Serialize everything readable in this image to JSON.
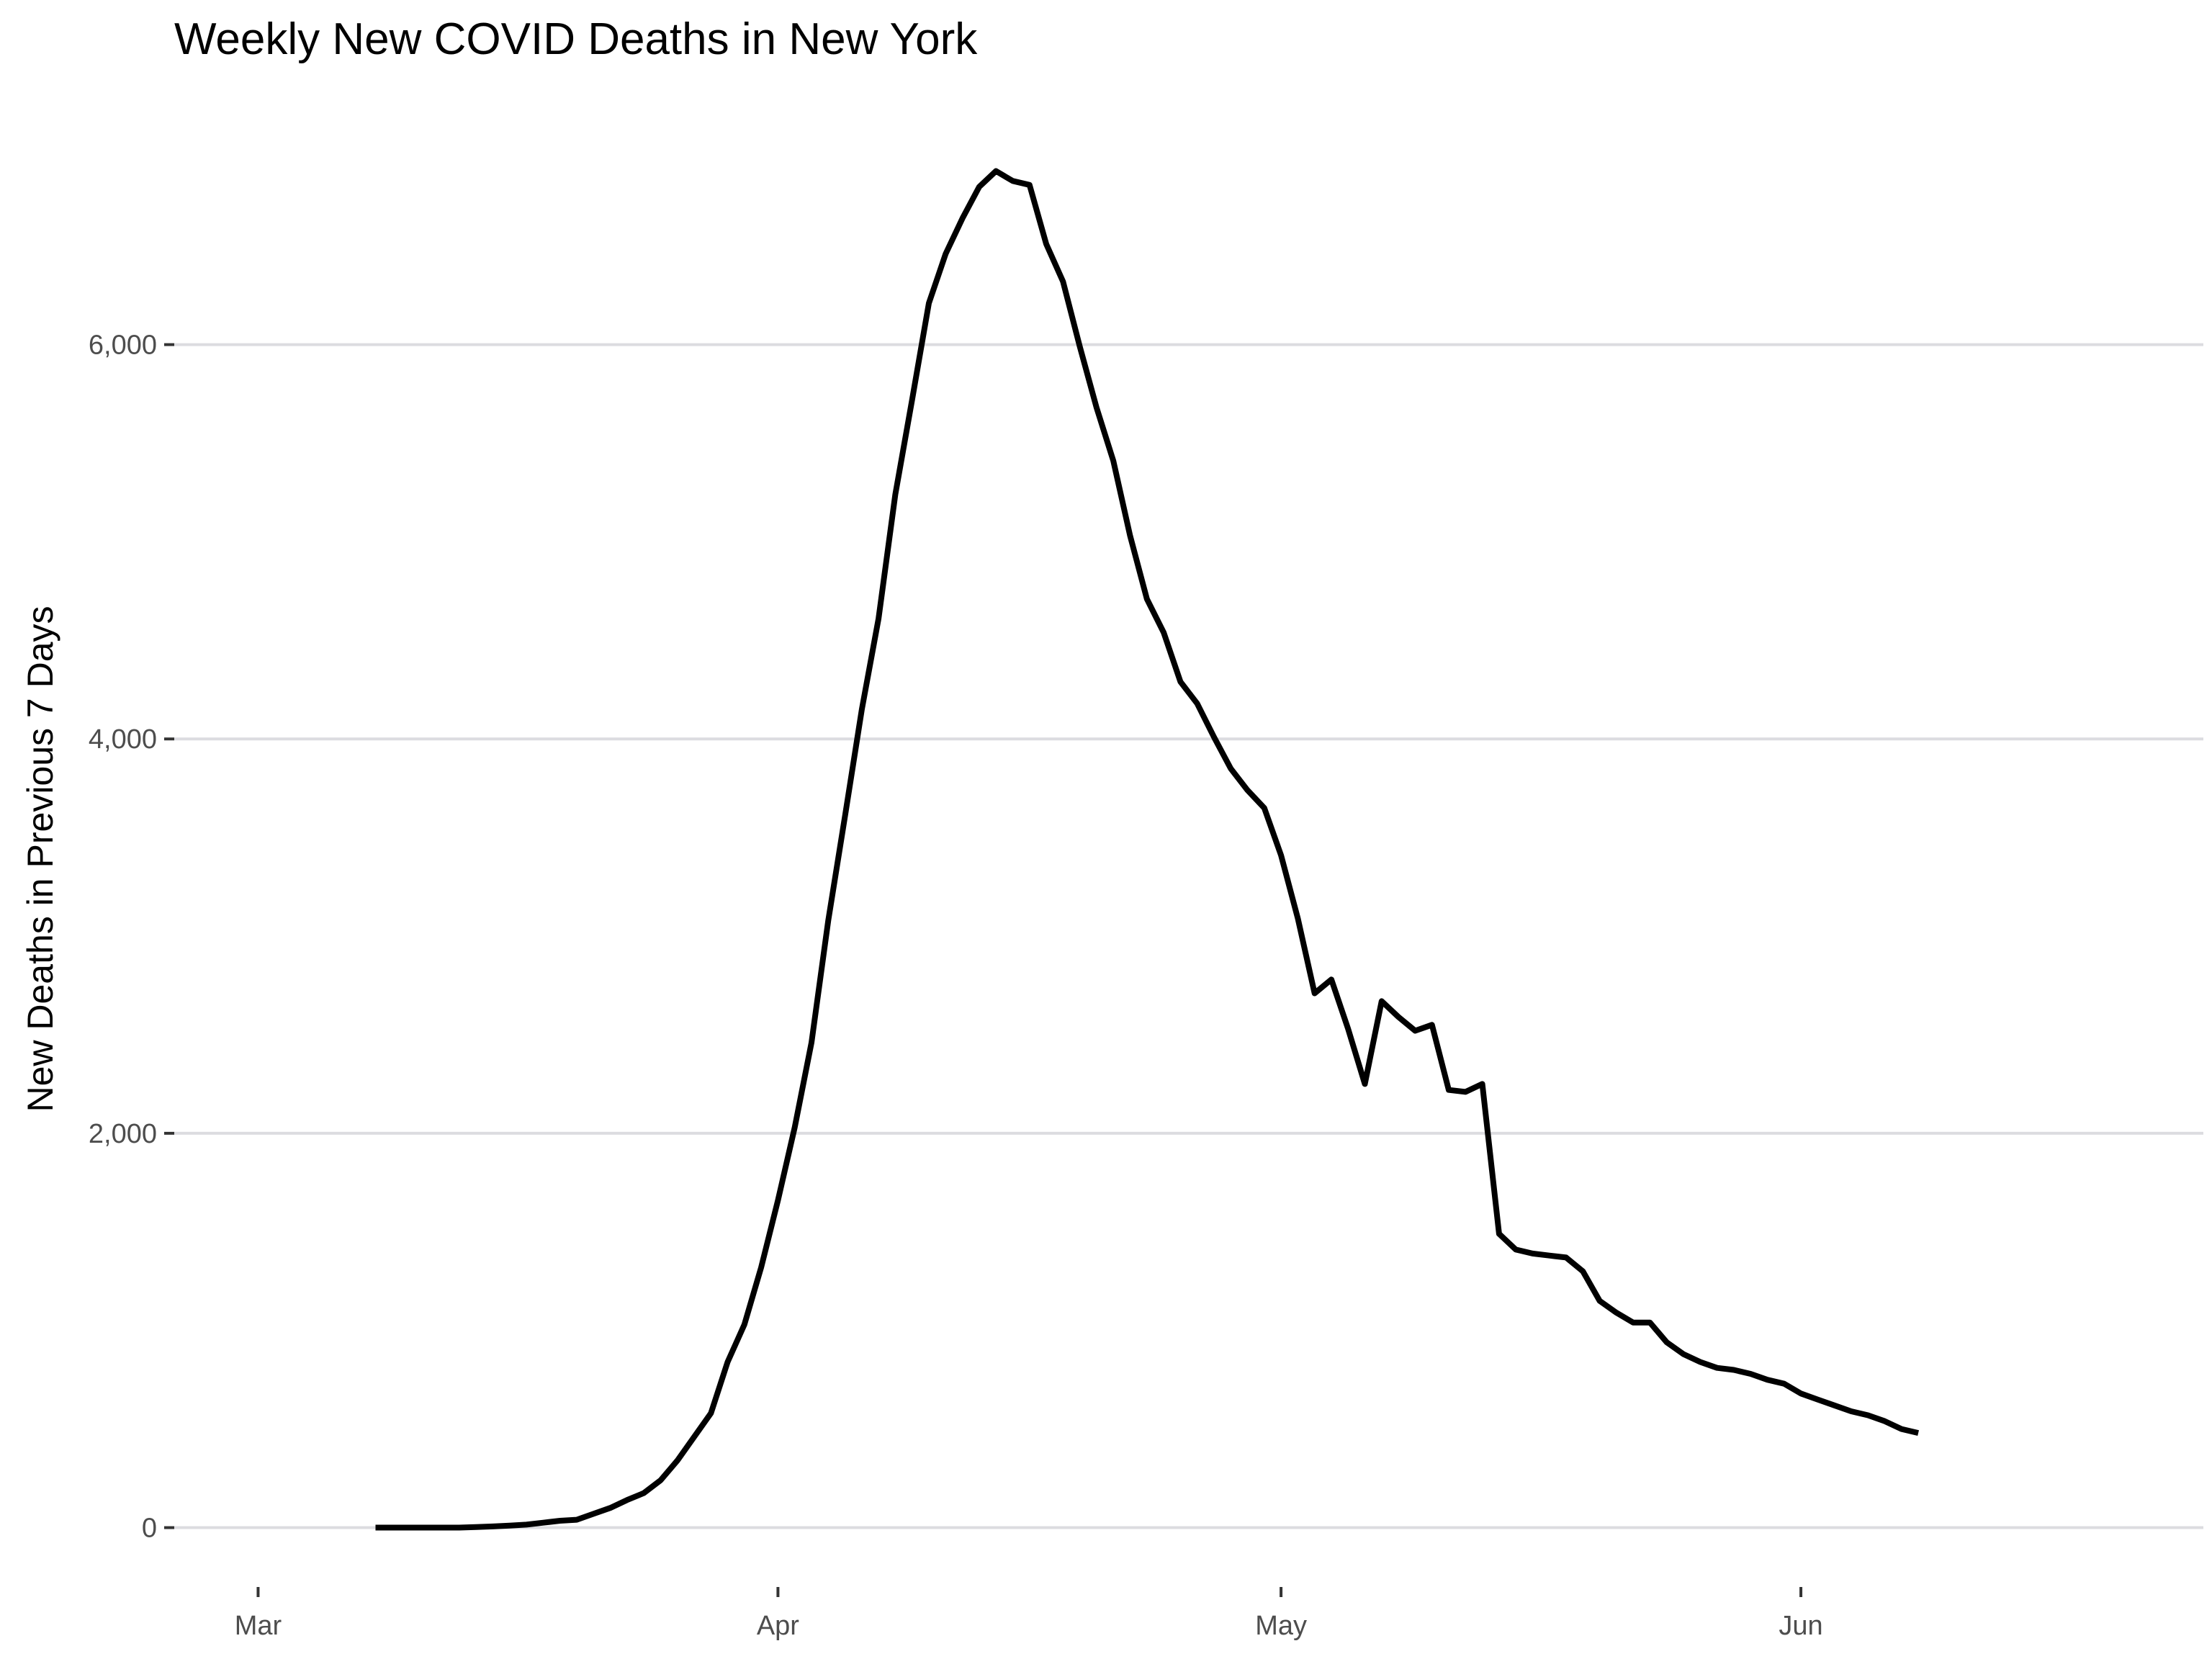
{
  "chart_data": {
    "type": "line",
    "title": "Weekly New COVID Deaths in New York",
    "xlabel": "",
    "ylabel": "New Deaths in Previous 7 Days",
    "x_axis": {
      "type": "date",
      "range": [
        "2020-02-25",
        "2020-06-25"
      ],
      "ticks": [
        {
          "date": "2020-03-01",
          "label": "Mar"
        },
        {
          "date": "2020-04-01",
          "label": "Apr"
        },
        {
          "date": "2020-05-01",
          "label": "May"
        },
        {
          "date": "2020-06-01",
          "label": "Jun"
        }
      ]
    },
    "y_axis": {
      "range": [
        -250,
        7200
      ],
      "ticks": [
        {
          "value": 0,
          "label": "0"
        },
        {
          "value": 2000,
          "label": "2,000"
        },
        {
          "value": 4000,
          "label": "4,000"
        },
        {
          "value": 6000,
          "label": "6,000"
        }
      ]
    },
    "grid": "horizontal major gridlines",
    "legend": "none",
    "line_color": "#000000",
    "series": [
      {
        "x": [
          "2020-03-08",
          "2020-03-09",
          "2020-03-10",
          "2020-03-11",
          "2020-03-12",
          "2020-03-13",
          "2020-03-14",
          "2020-03-15",
          "2020-03-16",
          "2020-03-17",
          "2020-03-18",
          "2020-03-19",
          "2020-03-20",
          "2020-03-21",
          "2020-03-22",
          "2020-03-23",
          "2020-03-24",
          "2020-03-25",
          "2020-03-26",
          "2020-03-27",
          "2020-03-28",
          "2020-03-29",
          "2020-03-30",
          "2020-03-31",
          "2020-04-01",
          "2020-04-02",
          "2020-04-03",
          "2020-04-04",
          "2020-04-05",
          "2020-04-06",
          "2020-04-07",
          "2020-04-08",
          "2020-04-09",
          "2020-04-10",
          "2020-04-11",
          "2020-04-12",
          "2020-04-13",
          "2020-04-14",
          "2020-04-15",
          "2020-04-16",
          "2020-04-17",
          "2020-04-18",
          "2020-04-19",
          "2020-04-20",
          "2020-04-21",
          "2020-04-22",
          "2020-04-23",
          "2020-04-24",
          "2020-04-25",
          "2020-04-26",
          "2020-04-27",
          "2020-04-28",
          "2020-04-29",
          "2020-04-30",
          "2020-05-01",
          "2020-05-02",
          "2020-05-03",
          "2020-05-04",
          "2020-05-05",
          "2020-05-06",
          "2020-05-07",
          "2020-05-08",
          "2020-05-09",
          "2020-05-10",
          "2020-05-11",
          "2020-05-12",
          "2020-05-13",
          "2020-05-14",
          "2020-05-15",
          "2020-05-16",
          "2020-05-17",
          "2020-05-18",
          "2020-05-19",
          "2020-05-20",
          "2020-05-21",
          "2020-05-22",
          "2020-05-23",
          "2020-05-24",
          "2020-05-25",
          "2020-05-26",
          "2020-05-27",
          "2020-05-28",
          "2020-05-29",
          "2020-05-30",
          "2020-05-31",
          "2020-06-01",
          "2020-06-02",
          "2020-06-03",
          "2020-06-04",
          "2020-06-05",
          "2020-06-06",
          "2020-06-07",
          "2020-06-08"
        ],
        "values": [
          0,
          0,
          0,
          0,
          0,
          0,
          3,
          6,
          10,
          15,
          25,
          35,
          40,
          70,
          100,
          140,
          175,
          240,
          340,
          460,
          580,
          840,
          1030,
          1320,
          1660,
          2030,
          2460,
          3080,
          3610,
          4150,
          4610,
          5240,
          5720,
          6210,
          6460,
          6640,
          6800,
          6880,
          6830,
          6810,
          6510,
          6320,
          5990,
          5680,
          5410,
          5030,
          4710,
          4540,
          4290,
          4180,
          4010,
          3850,
          3740,
          3650,
          3410,
          3090,
          2710,
          2780,
          2530,
          2250,
          2670,
          2590,
          2520,
          2550,
          2220,
          2210,
          2250,
          1490,
          1410,
          1390,
          1380,
          1370,
          1300,
          1150,
          1090,
          1040,
          1040,
          940,
          880,
          840,
          810,
          800,
          780,
          750,
          730,
          680,
          650,
          620,
          590,
          570,
          540,
          500,
          480
        ]
      }
    ]
  }
}
